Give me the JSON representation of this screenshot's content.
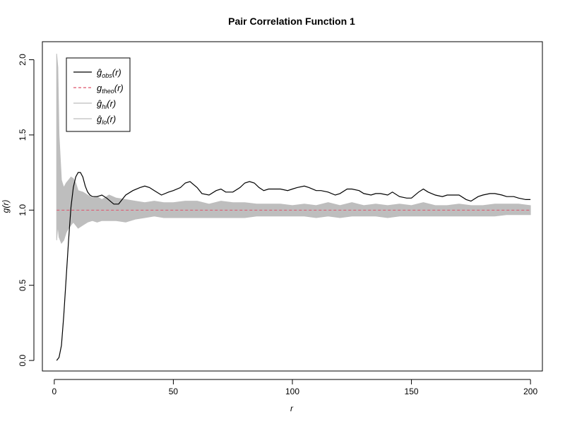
{
  "chart_data": {
    "type": "line",
    "title": "Pair Correlation Function 1",
    "xlabel": "r",
    "ylabel": "g(r)",
    "xlim": [
      -5,
      205
    ],
    "ylim": [
      -0.07,
      2.12
    ],
    "x_ticks": [
      0,
      50,
      100,
      150,
      200
    ],
    "x_tick_labels": [
      "0",
      "50",
      "100",
      "150",
      "200"
    ],
    "y_ticks": [
      0.0,
      0.5,
      1.0,
      1.5,
      2.0
    ],
    "y_tick_labels": [
      "0.0",
      "0.5",
      "1.0",
      "1.5",
      "2.0"
    ],
    "grid": false,
    "legend_position": "top-left",
    "legend": [
      {
        "key": "obs",
        "symbol": "ĝ",
        "sub": "obs",
        "arg": "(r)",
        "style": "solid",
        "color": "#000000"
      },
      {
        "key": "theo",
        "symbol": "g",
        "sub": "theo",
        "arg": "(r)",
        "style": "dashed",
        "color": "#df536b"
      },
      {
        "key": "hi",
        "symbol": "ĝ",
        "sub": "hi",
        "arg": "(r)",
        "style": "solid",
        "color": "#bebebe"
      },
      {
        "key": "lo",
        "symbol": "ĝ",
        "sub": "lo",
        "arg": "(r)",
        "style": "solid",
        "color": "#bebebe"
      }
    ],
    "colors": {
      "obs": "#000000",
      "theo": "#df536b",
      "envelope": "#bebebe"
    },
    "theo": {
      "x": [
        1,
        200
      ],
      "y": [
        1.0,
        1.0
      ]
    },
    "obs": {
      "x": [
        1,
        2,
        3,
        4,
        5,
        6,
        7,
        8,
        9,
        10,
        11,
        12,
        13,
        14,
        15,
        16,
        18,
        20,
        22,
        25,
        27,
        30,
        33,
        36,
        38,
        40,
        42,
        45,
        48,
        50,
        53,
        55,
        57,
        60,
        62,
        65,
        68,
        70,
        72,
        75,
        78,
        80,
        82,
        84,
        86,
        88,
        90,
        92,
        95,
        98,
        100,
        102,
        105,
        107,
        110,
        112,
        115,
        118,
        120,
        123,
        125,
        128,
        130,
        133,
        135,
        137,
        140,
        142,
        145,
        148,
        150,
        153,
        155,
        157,
        160,
        163,
        165,
        168,
        170,
        173,
        175,
        178,
        180,
        183,
        185,
        188,
        190,
        193,
        195,
        198,
        200
      ],
      "y": [
        0.0,
        0.02,
        0.1,
        0.3,
        0.55,
        0.8,
        1.02,
        1.15,
        1.22,
        1.25,
        1.25,
        1.22,
        1.16,
        1.12,
        1.1,
        1.09,
        1.09,
        1.1,
        1.08,
        1.04,
        1.04,
        1.1,
        1.13,
        1.15,
        1.16,
        1.15,
        1.13,
        1.1,
        1.12,
        1.13,
        1.15,
        1.18,
        1.19,
        1.15,
        1.11,
        1.1,
        1.13,
        1.14,
        1.12,
        1.12,
        1.15,
        1.18,
        1.19,
        1.18,
        1.15,
        1.13,
        1.14,
        1.14,
        1.14,
        1.13,
        1.14,
        1.15,
        1.16,
        1.15,
        1.13,
        1.13,
        1.12,
        1.1,
        1.11,
        1.14,
        1.14,
        1.13,
        1.11,
        1.1,
        1.11,
        1.11,
        1.1,
        1.12,
        1.09,
        1.08,
        1.08,
        1.12,
        1.14,
        1.12,
        1.1,
        1.09,
        1.1,
        1.1,
        1.1,
        1.07,
        1.06,
        1.09,
        1.1,
        1.11,
        1.11,
        1.1,
        1.09,
        1.09,
        1.08,
        1.07,
        1.07
      ]
    },
    "envelope": {
      "x": [
        1,
        1.5,
        2,
        3,
        4,
        5,
        6,
        7,
        8,
        9,
        10,
        12,
        14,
        16,
        18,
        20,
        23,
        26,
        30,
        34,
        38,
        42,
        46,
        50,
        55,
        60,
        65,
        70,
        75,
        80,
        85,
        90,
        95,
        100,
        105,
        110,
        115,
        120,
        125,
        130,
        135,
        140,
        145,
        150,
        155,
        160,
        165,
        170,
        175,
        180,
        185,
        190,
        195,
        200
      ],
      "hi": [
        2.04,
        1.95,
        1.5,
        1.2,
        1.15,
        1.18,
        1.2,
        1.22,
        1.21,
        1.18,
        1.13,
        1.12,
        1.1,
        1.08,
        1.09,
        1.07,
        1.1,
        1.08,
        1.07,
        1.06,
        1.05,
        1.06,
        1.05,
        1.05,
        1.06,
        1.06,
        1.04,
        1.06,
        1.05,
        1.05,
        1.04,
        1.04,
        1.04,
        1.03,
        1.04,
        1.03,
        1.05,
        1.03,
        1.05,
        1.03,
        1.04,
        1.03,
        1.04,
        1.03,
        1.05,
        1.03,
        1.03,
        1.04,
        1.03,
        1.03,
        1.04,
        1.04,
        1.04,
        1.03
      ],
      "lo": [
        0.8,
        0.9,
        0.82,
        0.78,
        0.8,
        0.85,
        0.88,
        0.9,
        0.92,
        0.9,
        0.88,
        0.9,
        0.92,
        0.93,
        0.92,
        0.93,
        0.93,
        0.93,
        0.92,
        0.94,
        0.95,
        0.96,
        0.95,
        0.95,
        0.95,
        0.95,
        0.95,
        0.95,
        0.95,
        0.95,
        0.96,
        0.96,
        0.96,
        0.96,
        0.96,
        0.95,
        0.96,
        0.95,
        0.96,
        0.96,
        0.96,
        0.95,
        0.96,
        0.96,
        0.96,
        0.96,
        0.96,
        0.96,
        0.96,
        0.96,
        0.96,
        0.97,
        0.97,
        0.97
      ]
    }
  }
}
